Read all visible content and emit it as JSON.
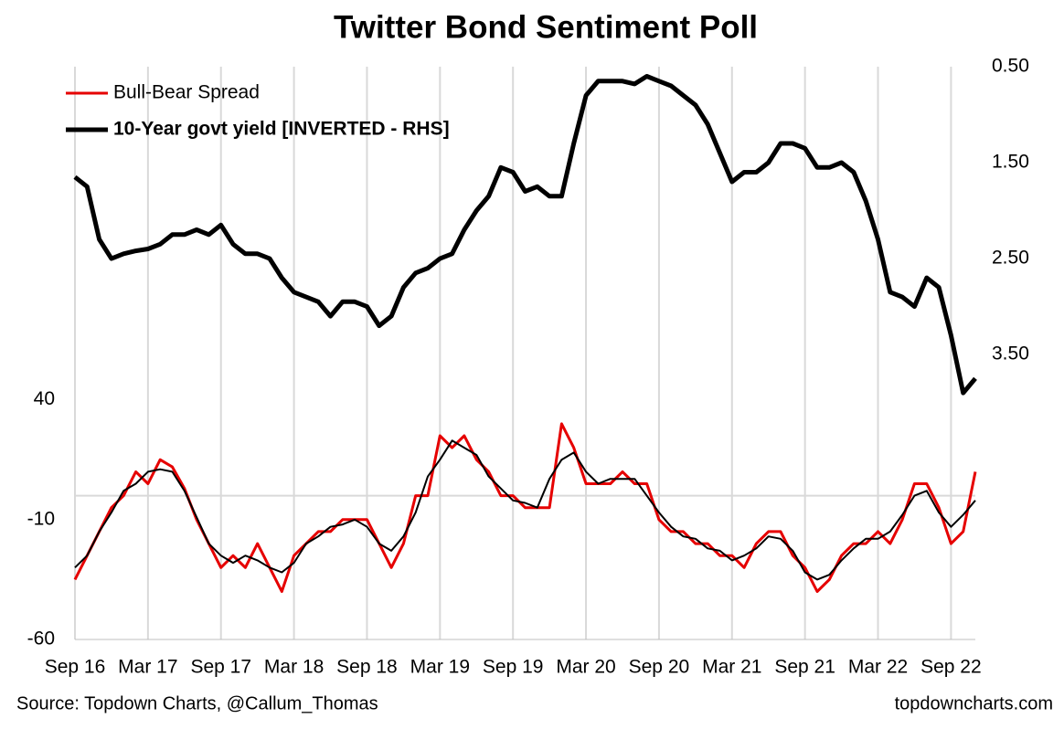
{
  "chart_data": {
    "type": "line",
    "title": "Twitter Bond Sentiment Poll",
    "source": "Source: Topdown Charts, @Callum_Thomas",
    "credit": "topdowncharts.com",
    "categories": [
      "Sep 16",
      null,
      null,
      null,
      null,
      null,
      "Mar 17",
      null,
      null,
      null,
      null,
      null,
      "Sep 17",
      null,
      null,
      null,
      null,
      null,
      "Mar 18",
      null,
      null,
      null,
      null,
      null,
      "Sep 18",
      null,
      null,
      null,
      null,
      null,
      "Mar 19",
      null,
      null,
      null,
      null,
      null,
      "Sep 19",
      null,
      null,
      null,
      null,
      null,
      "Mar 20",
      null,
      null,
      null,
      null,
      null,
      "Sep 20",
      null,
      null,
      null,
      null,
      null,
      "Mar 21",
      null,
      null,
      null,
      null,
      null,
      "Sep 21",
      null,
      null,
      null,
      null,
      null,
      "Mar 22",
      null,
      null,
      null,
      null,
      null,
      "Sep 22",
      null,
      null
    ],
    "series": [
      {
        "name": "Bull-Bear Spread",
        "color": "#e60000",
        "width": 3,
        "values": [
          -35,
          -25,
          -15,
          -5,
          0,
          10,
          5,
          15,
          12,
          3,
          -10,
          -20,
          -30,
          -25,
          -30,
          -20,
          -30,
          -40,
          -25,
          -20,
          -15,
          -15,
          -10,
          -10,
          -10,
          -20,
          -30,
          -20,
          0,
          0,
          25,
          20,
          25,
          15,
          10,
          0,
          0,
          -5,
          -5,
          -5,
          30,
          20,
          5,
          5,
          5,
          10,
          5,
          5,
          -10,
          -15,
          -15,
          -20,
          -20,
          -25,
          -25,
          -30,
          -20,
          -15,
          -15,
          -25,
          -30,
          -40,
          -35,
          -25,
          -20,
          -20,
          -15,
          -20,
          -10,
          5,
          5,
          -5,
          -20,
          -15,
          10
        ]
      },
      {
        "name": "10-Year govt yield [INVERTED - RHS]",
        "color": "#000000",
        "width": 5,
        "axis": "y2",
        "values": [
          1.65,
          1.75,
          2.3,
          2.5,
          2.45,
          2.42,
          2.4,
          2.35,
          2.25,
          2.25,
          2.2,
          2.25,
          2.15,
          2.35,
          2.45,
          2.45,
          2.5,
          2.7,
          2.85,
          2.9,
          2.95,
          3.1,
          2.95,
          2.95,
          3.0,
          3.2,
          3.1,
          2.8,
          2.65,
          2.6,
          2.5,
          2.45,
          2.2,
          2.0,
          1.85,
          1.55,
          1.6,
          1.8,
          1.75,
          1.85,
          1.85,
          1.3,
          0.8,
          0.65,
          0.65,
          0.65,
          0.68,
          0.6,
          0.65,
          0.7,
          0.8,
          0.9,
          1.1,
          1.4,
          1.7,
          1.6,
          1.6,
          1.5,
          1.3,
          1.3,
          1.35,
          1.55,
          1.55,
          1.5,
          1.6,
          1.9,
          2.3,
          2.85,
          2.9,
          3.0,
          2.7,
          2.8,
          3.3,
          3.9,
          3.75
        ]
      },
      {
        "color": "#000000",
        "width": 2,
        "values": [
          -30,
          -25,
          -15,
          -7,
          2,
          5,
          10,
          11,
          10,
          2,
          -9,
          -20,
          -25,
          -28,
          -25,
          -27,
          -30,
          -32,
          -28,
          -20,
          -17,
          -13,
          -12,
          -10,
          -13,
          -20,
          -23,
          -17,
          -7,
          8,
          15,
          23,
          20,
          17,
          8,
          3,
          -2,
          -3,
          -5,
          7,
          15,
          18,
          10,
          5,
          7,
          7,
          7,
          0,
          -7,
          -13,
          -17,
          -18,
          -22,
          -23,
          -27,
          -25,
          -22,
          -17,
          -18,
          -23,
          -32,
          -35,
          -33,
          -27,
          -22,
          -18,
          -18,
          -15,
          -8,
          0,
          2,
          -7,
          -13,
          -8,
          -2
        ]
      }
    ],
    "ylim": [
      -60,
      179
    ],
    "yticks": [
      -60,
      -10,
      40
    ],
    "y2lim": [
      0.5,
      6.47
    ],
    "y2_inverted": true,
    "y2ticks": [
      {
        "value": 0.5,
        "label": "0.50"
      },
      {
        "value": 1.5,
        "label": "1.50"
      },
      {
        "value": 2.5,
        "label": "2.50"
      },
      {
        "value": 3.5,
        "label": "3.50"
      }
    ],
    "hline": 0,
    "grid": "x",
    "legend": "upper left"
  }
}
